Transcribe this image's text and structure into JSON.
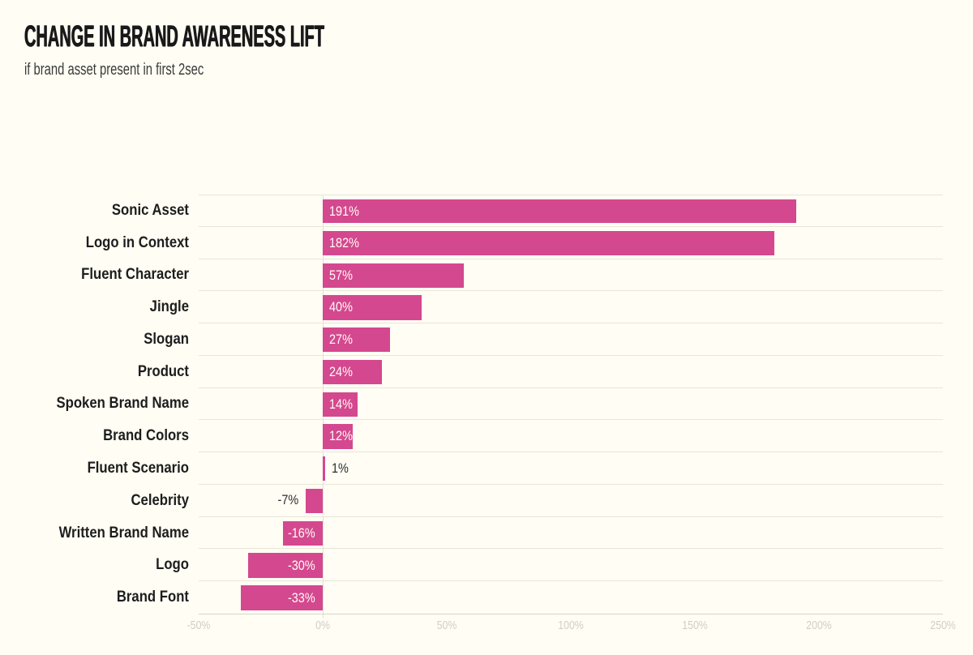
{
  "header": {
    "title": "CHANGE IN BRAND AWARENESS LIFT",
    "subtitle": "if brand asset present in first 2sec"
  },
  "chart_data": {
    "type": "bar",
    "orientation": "horizontal",
    "title": "CHANGE IN BRAND AWARENESS LIFT",
    "subtitle": "if brand asset present in first 2sec",
    "categories": [
      "Sonic Asset",
      "Logo in Context",
      "Fluent Character",
      "Jingle",
      "Slogan",
      "Product",
      "Spoken Brand Name",
      "Brand Colors",
      "Fluent Scenario",
      "Celebrity",
      "Written Brand Name",
      "Logo",
      "Brand Font"
    ],
    "values": [
      191,
      182,
      57,
      40,
      27,
      24,
      14,
      12,
      1,
      -7,
      -16,
      -30,
      -33
    ],
    "value_labels": [
      "191%",
      "182%",
      "57%",
      "40%",
      "27%",
      "24%",
      "14%",
      "12%",
      "1%",
      "-7%",
      "-16%",
      "-30%",
      "-33%"
    ],
    "xlim": [
      -50,
      250
    ],
    "x_ticks": [
      {
        "value": -50,
        "label": "-50%"
      },
      {
        "value": 0,
        "label": "0%"
      },
      {
        "value": 50,
        "label": "50%"
      },
      {
        "value": 100,
        "label": "100%"
      },
      {
        "value": 150,
        "label": "150%"
      },
      {
        "value": 200,
        "label": "200%"
      },
      {
        "value": 250,
        "label": "250%"
      }
    ],
    "grid": "row-separators and zero line only",
    "legend": "none",
    "colors": {
      "background": "#FFFDF4",
      "bar": "#D4488F",
      "inside_value_label": "#FFFDF4",
      "outside_value_label": "#2B2B2B",
      "category_label": "#1D1D1D",
      "axis_tick_label": "#D2CEC2",
      "row_separator": "#E9E6DB"
    }
  }
}
